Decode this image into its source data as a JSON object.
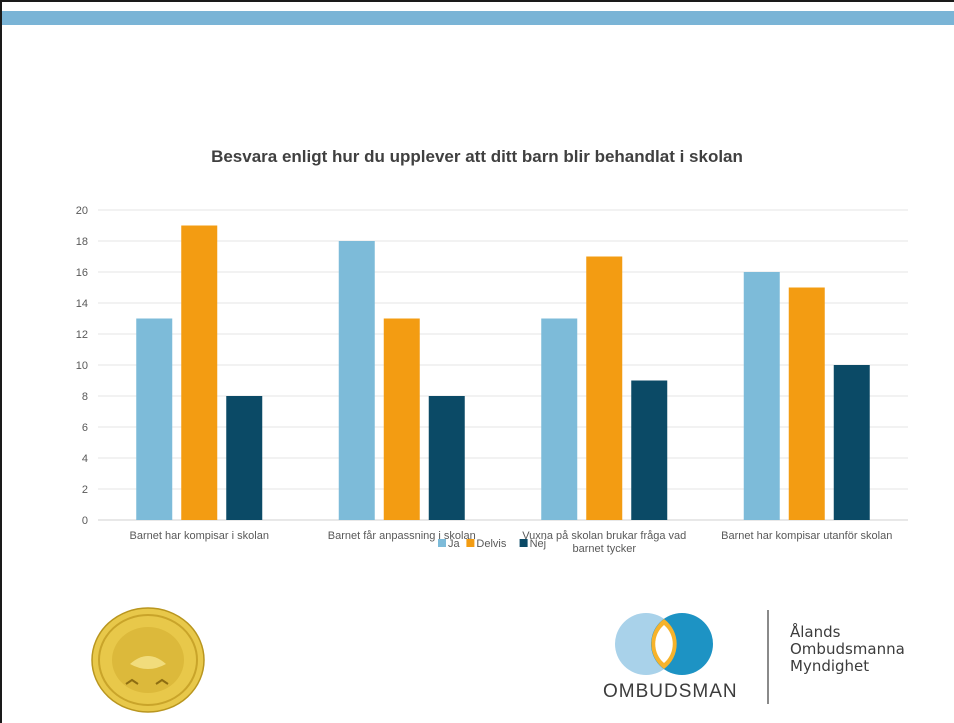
{
  "chart_data": {
    "type": "bar",
    "title": "Besvara enligt hur du upplever att ditt barn blir behandlat i skolan",
    "categories": [
      [
        "Barnet har kompisar i skolan"
      ],
      [
        "Barnet får anpassning i skolan"
      ],
      [
        "Vuxna på skolan brukar fråga vad",
        "barnet tycker"
      ],
      [
        "Barnet har kompisar utanför skolan"
      ]
    ],
    "series": [
      {
        "name": "Ja",
        "values": [
          13,
          18,
          13,
          16
        ],
        "color": "#7dbbd9"
      },
      {
        "name": "Delvis",
        "values": [
          19,
          13,
          17,
          15
        ],
        "color": "#f39c12"
      },
      {
        "name": "Nej",
        "values": [
          8,
          8,
          9,
          10
        ],
        "color": "#0b4a66"
      }
    ],
    "ylim": [
      0,
      20
    ],
    "yticks": [
      0,
      2,
      4,
      6,
      8,
      10,
      12,
      14,
      16,
      18,
      20
    ],
    "grid": true,
    "legend": "bottom-center"
  },
  "footer": {
    "ombudsman_word": "OMBUDSMAN",
    "org_lines": [
      "Ålands",
      "Ombudsmanna",
      "Myndighet"
    ],
    "seal_icon": "gold-seal-icon",
    "logo_icon": "ombudsman-circles-icon"
  }
}
